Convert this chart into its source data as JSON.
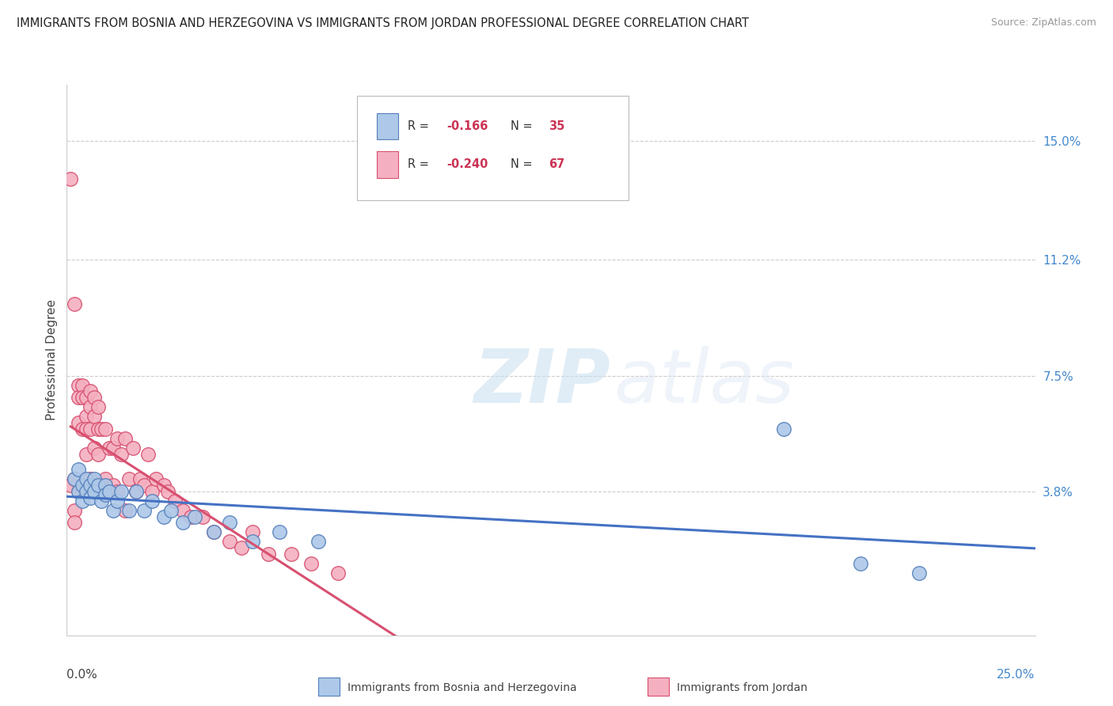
{
  "title": "IMMIGRANTS FROM BOSNIA AND HERZEGOVINA VS IMMIGRANTS FROM JORDAN PROFESSIONAL DEGREE CORRELATION CHART",
  "source": "Source: ZipAtlas.com",
  "xlabel_bottom_left": "0.0%",
  "xlabel_bottom_right": "25.0%",
  "ylabel": "Professional Degree",
  "right_ytick_labels": [
    "15.0%",
    "11.2%",
    "7.5%",
    "3.8%"
  ],
  "right_ytick_values": [
    0.15,
    0.112,
    0.075,
    0.038
  ],
  "xlim": [
    0.0,
    0.25
  ],
  "ylim": [
    -0.008,
    0.168
  ],
  "series1_label": "Immigrants from Bosnia and Herzegovina",
  "series1_color": "#adc8e8",
  "series1_edge_color": "#5580bb",
  "series1_R": -0.166,
  "series1_N": 35,
  "series1_x": [
    0.002,
    0.003,
    0.003,
    0.004,
    0.004,
    0.005,
    0.005,
    0.006,
    0.006,
    0.007,
    0.007,
    0.008,
    0.009,
    0.01,
    0.01,
    0.011,
    0.012,
    0.013,
    0.014,
    0.016,
    0.018,
    0.02,
    0.022,
    0.025,
    0.027,
    0.03,
    0.033,
    0.038,
    0.042,
    0.048,
    0.055,
    0.065,
    0.185,
    0.205,
    0.22
  ],
  "series1_y": [
    0.042,
    0.038,
    0.045,
    0.04,
    0.035,
    0.042,
    0.038,
    0.04,
    0.036,
    0.042,
    0.038,
    0.04,
    0.035,
    0.04,
    0.037,
    0.038,
    0.032,
    0.035,
    0.038,
    0.032,
    0.038,
    0.032,
    0.035,
    0.03,
    0.032,
    0.028,
    0.03,
    0.025,
    0.028,
    0.022,
    0.025,
    0.022,
    0.058,
    0.015,
    0.012
  ],
  "series2_label": "Immigrants from Jordan",
  "series2_color": "#f4b0c0",
  "series2_edge_color": "#d85070",
  "series2_R": -0.24,
  "series2_N": 67,
  "series2_x": [
    0.001,
    0.001,
    0.002,
    0.002,
    0.002,
    0.002,
    0.003,
    0.003,
    0.003,
    0.003,
    0.004,
    0.004,
    0.004,
    0.004,
    0.005,
    0.005,
    0.005,
    0.005,
    0.005,
    0.006,
    0.006,
    0.006,
    0.006,
    0.006,
    0.007,
    0.007,
    0.007,
    0.007,
    0.008,
    0.008,
    0.008,
    0.008,
    0.009,
    0.009,
    0.01,
    0.01,
    0.011,
    0.011,
    0.012,
    0.012,
    0.013,
    0.013,
    0.014,
    0.015,
    0.015,
    0.016,
    0.017,
    0.018,
    0.019,
    0.02,
    0.021,
    0.022,
    0.023,
    0.025,
    0.026,
    0.028,
    0.03,
    0.032,
    0.035,
    0.038,
    0.042,
    0.045,
    0.048,
    0.052,
    0.058,
    0.063,
    0.07
  ],
  "series2_y": [
    0.138,
    0.04,
    0.098,
    0.042,
    0.032,
    0.028,
    0.072,
    0.068,
    0.06,
    0.038,
    0.072,
    0.068,
    0.058,
    0.038,
    0.068,
    0.062,
    0.058,
    0.05,
    0.038,
    0.07,
    0.065,
    0.058,
    0.042,
    0.038,
    0.068,
    0.062,
    0.052,
    0.04,
    0.065,
    0.058,
    0.05,
    0.038,
    0.058,
    0.04,
    0.058,
    0.042,
    0.052,
    0.038,
    0.052,
    0.04,
    0.055,
    0.038,
    0.05,
    0.055,
    0.032,
    0.042,
    0.052,
    0.038,
    0.042,
    0.04,
    0.05,
    0.038,
    0.042,
    0.04,
    0.038,
    0.035,
    0.032,
    0.03,
    0.03,
    0.025,
    0.022,
    0.02,
    0.025,
    0.018,
    0.018,
    0.015,
    0.012
  ],
  "watermark_zip": "ZIP",
  "watermark_atlas": "atlas",
  "background_color": "#ffffff",
  "grid_color": "#cccccc",
  "trendline1_color": "#4472c4",
  "trendline2_color": "#d85070",
  "legend_color_r": "#cc3355",
  "legend_color_n": "#cc3355"
}
